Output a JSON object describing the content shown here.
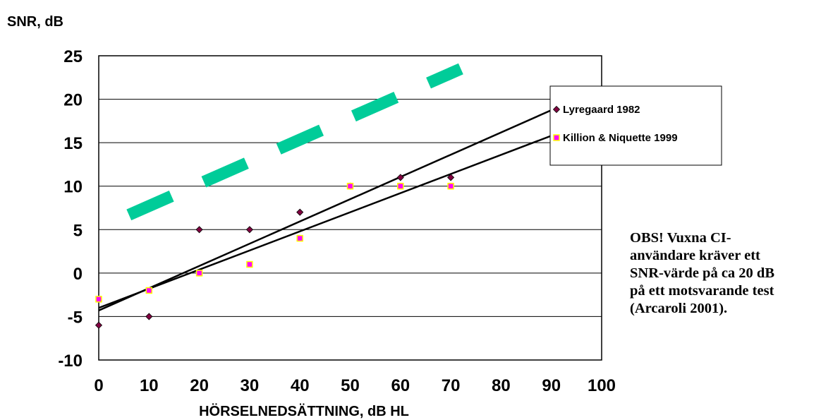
{
  "chart_data": {
    "type": "scatter",
    "title": "",
    "ylabel": "SNR, dB",
    "xlabel": "HÖRSELNEDSÄTTNING, dB HL",
    "xlim": [
      0,
      100
    ],
    "ylim": [
      -10,
      25
    ],
    "x_ticks": [
      "0",
      "10",
      "20",
      "30",
      "40",
      "50",
      "60",
      "70",
      "80",
      "90",
      "100"
    ],
    "y_ticks": [
      "25",
      "20",
      "15",
      "10",
      "5",
      "0",
      "-5",
      "-10"
    ],
    "grid": "horizontal",
    "legend_position": "right",
    "series": [
      {
        "name": "Lyregaard 1982",
        "marker": "diamond",
        "color": "#800040",
        "points": [
          {
            "x": 0,
            "y": -6
          },
          {
            "x": 10,
            "y": -5
          },
          {
            "x": 20,
            "y": 5
          },
          {
            "x": 30,
            "y": 5
          },
          {
            "x": 40,
            "y": 7
          },
          {
            "x": 50,
            "y": 10
          },
          {
            "x": 60,
            "y": 11
          },
          {
            "x": 70,
            "y": 11
          }
        ],
        "trendline": {
          "x": [
            0,
            100
          ],
          "y": [
            -4.3,
            21.3
          ]
        }
      },
      {
        "name": "Killion & Niquette 1999",
        "marker": "square",
        "color": "#ff00ff",
        "edge_color": "#ffff00",
        "points": [
          {
            "x": 0,
            "y": -3
          },
          {
            "x": 10,
            "y": -2
          },
          {
            "x": 20,
            "y": 0
          },
          {
            "x": 30,
            "y": 1
          },
          {
            "x": 40,
            "y": 4
          },
          {
            "x": 50,
            "y": 10
          },
          {
            "x": 60,
            "y": 10
          },
          {
            "x": 70,
            "y": 10
          }
        ],
        "trendline": {
          "x": [
            0,
            100
          ],
          "y": [
            -4,
            18
          ]
        }
      }
    ],
    "reference_line": {
      "style": "dashed",
      "color": "#00cc99",
      "x": [
        6,
        72
      ],
      "y": [
        6.7,
        23.5
      ]
    }
  },
  "note": "OBS! Vuxna CI-\nanvändare kräver ett\nSNR-värde på ca 20 dB\npå ett motsvarande test\n(Arcaroli 2001)."
}
